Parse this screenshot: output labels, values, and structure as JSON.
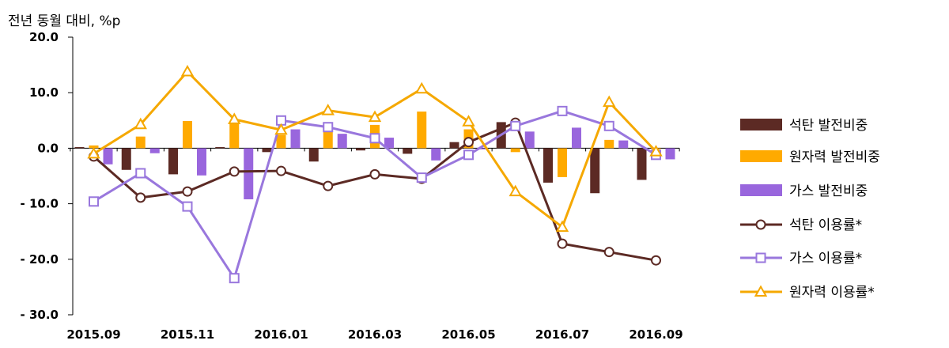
{
  "chart_data": {
    "type": "bar",
    "unit_label": "전년 동월 대비, %p",
    "ylim": [
      -30,
      20
    ],
    "yticks": [
      "20.0",
      "10.0",
      "0.0",
      "- 10.0",
      "- 20.0",
      "- 30.0"
    ],
    "ytick_values": [
      20,
      10,
      0,
      -10,
      -20,
      -30
    ],
    "categories": [
      "2015.09",
      "2015.10",
      "2015.11",
      "2015.12",
      "2016.01",
      "2016.02",
      "2016.03",
      "2016.04",
      "2016.05",
      "2016.06",
      "2016.07",
      "2016.08",
      "2016.09"
    ],
    "xtick_labels": [
      "2015.09",
      "2015.11",
      "2016.01",
      "2016.03",
      "2016.05",
      "2016.07",
      "2016.09"
    ],
    "legend_position": "right",
    "bar_series": [
      {
        "name": "석탄 발전비중",
        "color": "#5c2a24",
        "values": [
          0.2,
          -3.9,
          -4.7,
          0.2,
          -0.7,
          -2.4,
          -0.4,
          -1.0,
          1.1,
          4.7,
          -6.2,
          -8.1,
          -5.7
        ]
      },
      {
        "name": "원자력 발전비중",
        "color": "#ffaa00",
        "values": [
          0.5,
          2.1,
          4.9,
          4.5,
          2.4,
          3.0,
          4.2,
          6.6,
          3.4,
          -0.7,
          -5.2,
          1.5,
          -0.2
        ]
      },
      {
        "name": "가스 발전비중",
        "color": "#9966dd",
        "values": [
          -2.9,
          -0.9,
          -4.9,
          -9.2,
          3.4,
          2.6,
          1.9,
          -2.2,
          -0.2,
          3.0,
          3.7,
          1.4,
          -2.0
        ]
      }
    ],
    "line_series": [
      {
        "name": "석탄 이용률*",
        "color": "#5c2a24",
        "marker": "circle",
        "values": [
          -1.5,
          -8.9,
          -7.8,
          -4.2,
          -4.1,
          -6.8,
          -4.7,
          -5.5,
          1.1,
          4.6,
          -17.2,
          -18.7,
          -20.2
        ]
      },
      {
        "name": "가스 이용률*",
        "color": "#9977dd",
        "marker": "square",
        "values": [
          -9.6,
          -4.5,
          -10.5,
          -23.4,
          5.0,
          3.8,
          1.8,
          -5.3,
          -1.2,
          4.0,
          6.7,
          4.0,
          -1.2
        ]
      },
      {
        "name": "원자력 이용률*",
        "color": "#f5a800",
        "marker": "triangle",
        "values": [
          -1.0,
          4.3,
          13.8,
          5.2,
          3.3,
          6.8,
          5.6,
          10.7,
          4.8,
          -7.8,
          -14.2,
          8.3,
          -0.6
        ]
      }
    ]
  }
}
